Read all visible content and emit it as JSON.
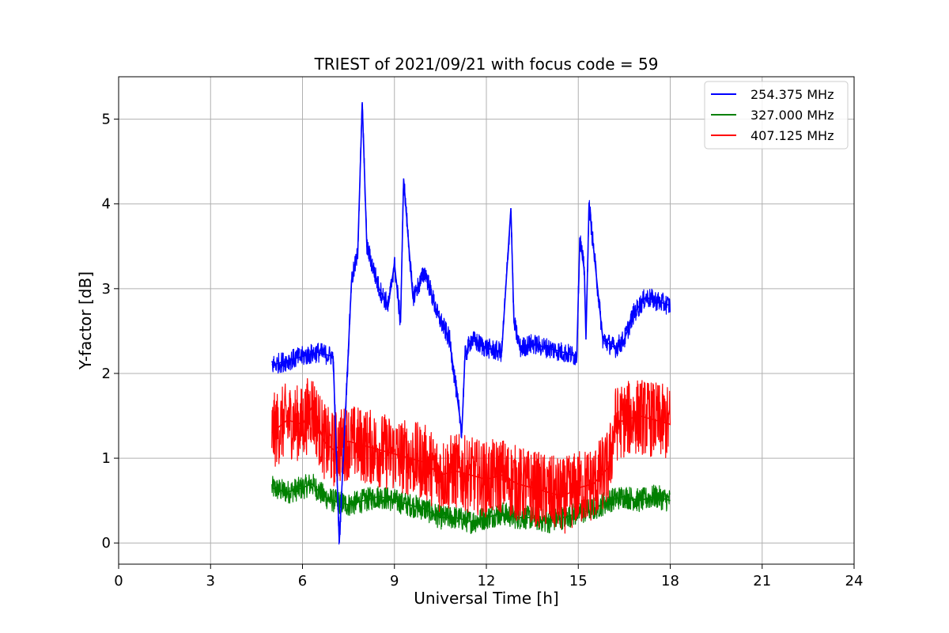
{
  "chart_data": {
    "type": "line",
    "title": "TRIEST of 2021/09/21 with focus code = 59",
    "xlabel": "Universal Time [h]",
    "ylabel": "Y-factor [dB]",
    "xlim": [
      0,
      24
    ],
    "ylim": [
      -0.25,
      5.5
    ],
    "xticks": [
      0,
      3,
      6,
      9,
      12,
      15,
      18,
      21,
      24
    ],
    "yticks": [
      0,
      1,
      2,
      3,
      4,
      5
    ],
    "grid": true,
    "legend_position": "top-right",
    "series": [
      {
        "name": "254.375 MHz",
        "color": "#0000ff",
        "x": [
          5.0,
          5.5,
          6.0,
          6.5,
          7.0,
          7.2,
          7.5,
          7.6,
          7.8,
          7.95,
          8.1,
          8.5,
          8.8,
          9.0,
          9.2,
          9.3,
          9.6,
          10.0,
          10.4,
          10.8,
          11.2,
          11.3,
          11.5,
          12.0,
          12.5,
          12.8,
          12.9,
          13.1,
          13.5,
          14.0,
          14.5,
          14.95,
          15.05,
          15.2,
          15.25,
          15.35,
          15.8,
          16.2,
          16.5,
          16.8,
          17.2,
          17.6,
          18.0
        ],
        "y": [
          2.1,
          2.15,
          2.2,
          2.25,
          2.2,
          0.0,
          2.3,
          3.1,
          3.4,
          5.2,
          3.5,
          3.0,
          2.8,
          3.3,
          2.6,
          4.3,
          2.9,
          3.2,
          2.7,
          2.4,
          1.3,
          2.2,
          2.4,
          2.3,
          2.25,
          3.95,
          2.6,
          2.3,
          2.35,
          2.3,
          2.25,
          2.2,
          3.6,
          3.2,
          2.4,
          4.0,
          2.4,
          2.3,
          2.4,
          2.7,
          2.9,
          2.85,
          2.8
        ]
      },
      {
        "name": "327.000 MHz",
        "color": "#008000",
        "x": [
          5.0,
          5.5,
          6.0,
          6.3,
          6.7,
          7.0,
          7.5,
          8.0,
          8.5,
          9.0,
          9.5,
          10.0,
          10.5,
          11.0,
          11.5,
          12.0,
          12.5,
          13.0,
          13.5,
          14.0,
          14.5,
          15.0,
          15.5,
          16.0,
          16.5,
          17.0,
          17.5,
          18.0
        ],
        "y": [
          0.65,
          0.6,
          0.65,
          0.7,
          0.55,
          0.5,
          0.45,
          0.5,
          0.55,
          0.5,
          0.45,
          0.4,
          0.3,
          0.3,
          0.25,
          0.3,
          0.35,
          0.3,
          0.3,
          0.25,
          0.3,
          0.35,
          0.4,
          0.5,
          0.55,
          0.5,
          0.55,
          0.5
        ]
      },
      {
        "name": "407.125 MHz",
        "color": "#ff0000",
        "x": [
          5.0,
          5.5,
          6.0,
          6.3,
          6.7,
          7.0,
          7.5,
          8.0,
          8.5,
          9.0,
          9.5,
          10.0,
          10.5,
          11.0,
          11.5,
          12.0,
          12.5,
          13.0,
          13.5,
          14.0,
          14.5,
          15.0,
          15.5,
          16.0,
          16.2,
          16.5,
          17.0,
          17.5,
          18.0
        ],
        "y": [
          1.3,
          1.45,
          1.4,
          1.6,
          1.2,
          1.1,
          1.2,
          1.15,
          1.1,
          1.05,
          1.0,
          0.95,
          0.8,
          0.85,
          0.8,
          0.75,
          0.8,
          0.7,
          0.65,
          0.6,
          0.55,
          0.65,
          0.7,
          0.9,
          1.4,
          1.45,
          1.5,
          1.45,
          1.4
        ]
      }
    ]
  }
}
